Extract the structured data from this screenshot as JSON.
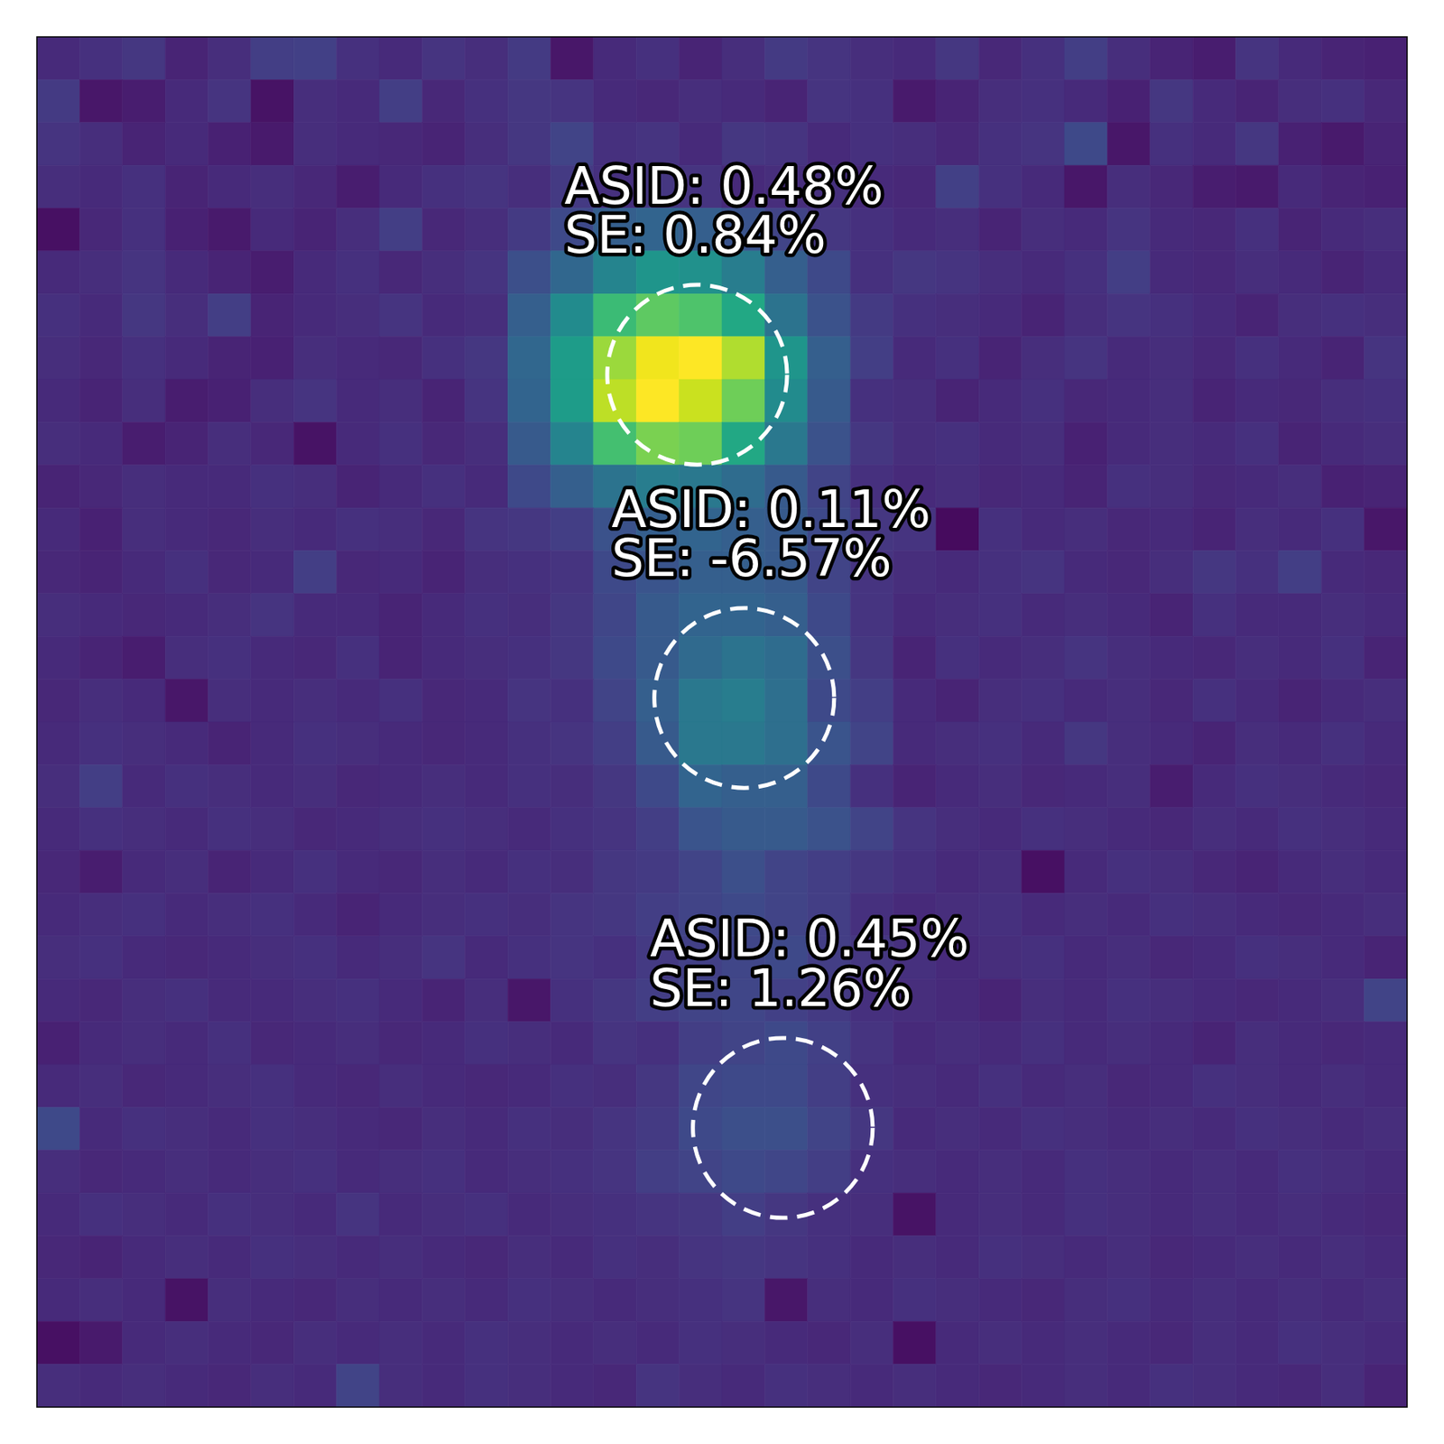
{
  "chart_data": {
    "type": "heatmap",
    "tick_labels": false,
    "xlim": [
      0,
      32
    ],
    "ylim": [
      32,
      0
    ],
    "zlim": [
      0,
      1
    ],
    "z": [
      [
        0.12,
        0.14,
        0.16,
        0.1,
        0.13,
        0.18,
        0.19,
        0.14,
        0.12,
        0.15,
        0.13,
        0.17,
        0.06,
        0.12,
        0.14,
        0.1,
        0.13,
        0.17,
        0.15,
        0.13,
        0.12,
        0.16,
        0.11,
        0.14,
        0.18,
        0.13,
        0.1,
        0.08,
        0.15,
        0.12,
        0.1,
        0.09
      ],
      [
        0.17,
        0.06,
        0.08,
        0.12,
        0.15,
        0.05,
        0.13,
        0.12,
        0.18,
        0.11,
        0.14,
        0.16,
        0.15,
        0.12,
        0.11,
        0.13,
        0.12,
        0.1,
        0.15,
        0.14,
        0.07,
        0.1,
        0.13,
        0.14,
        0.12,
        0.09,
        0.16,
        0.12,
        0.1,
        0.13,
        0.14,
        0.11
      ],
      [
        0.15,
        0.13,
        0.1,
        0.12,
        0.09,
        0.07,
        0.13,
        0.12,
        0.11,
        0.1,
        0.13,
        0.16,
        0.2,
        0.14,
        0.15,
        0.12,
        0.16,
        0.15,
        0.12,
        0.14,
        0.13,
        0.11,
        0.14,
        0.15,
        0.22,
        0.06,
        0.14,
        0.12,
        0.16,
        0.09,
        0.07,
        0.1
      ],
      [
        0.13,
        0.12,
        0.14,
        0.1,
        0.12,
        0.13,
        0.11,
        0.08,
        0.12,
        0.14,
        0.15,
        0.13,
        0.17,
        0.14,
        0.16,
        0.15,
        0.12,
        0.13,
        0.14,
        0.12,
        0.11,
        0.19,
        0.14,
        0.12,
        0.06,
        0.13,
        0.11,
        0.08,
        0.07,
        0.12,
        0.1,
        0.09
      ],
      [
        0.04,
        0.11,
        0.14,
        0.09,
        0.07,
        0.12,
        0.1,
        0.13,
        0.18,
        0.11,
        0.13,
        0.17,
        0.22,
        0.3,
        0.32,
        0.3,
        0.26,
        0.2,
        0.16,
        0.14,
        0.12,
        0.13,
        0.1,
        0.13,
        0.12,
        0.15,
        0.12,
        0.11,
        0.14,
        0.1,
        0.12,
        0.13
      ],
      [
        0.12,
        0.13,
        0.15,
        0.12,
        0.1,
        0.08,
        0.12,
        0.14,
        0.11,
        0.13,
        0.15,
        0.24,
        0.33,
        0.45,
        0.52,
        0.5,
        0.42,
        0.3,
        0.22,
        0.14,
        0.16,
        0.15,
        0.13,
        0.12,
        0.14,
        0.18,
        0.12,
        0.11,
        0.13,
        0.12,
        0.1,
        0.12
      ],
      [
        0.14,
        0.12,
        0.16,
        0.13,
        0.18,
        0.1,
        0.12,
        0.13,
        0.15,
        0.12,
        0.13,
        0.3,
        0.48,
        0.68,
        0.75,
        0.72,
        0.6,
        0.38,
        0.25,
        0.17,
        0.14,
        0.13,
        0.12,
        0.1,
        0.13,
        0.15,
        0.14,
        0.12,
        0.1,
        0.13,
        0.14,
        0.13
      ],
      [
        0.13,
        0.11,
        0.14,
        0.12,
        0.1,
        0.09,
        0.13,
        0.12,
        0.11,
        0.14,
        0.16,
        0.33,
        0.55,
        0.85,
        0.98,
        1.0,
        0.88,
        0.52,
        0.3,
        0.18,
        0.12,
        0.14,
        0.1,
        0.13,
        0.15,
        0.12,
        0.13,
        0.11,
        0.14,
        0.12,
        0.1,
        0.15
      ],
      [
        0.12,
        0.1,
        0.13,
        0.08,
        0.09,
        0.13,
        0.15,
        0.12,
        0.13,
        0.1,
        0.15,
        0.32,
        0.55,
        0.9,
        1.0,
        0.92,
        0.78,
        0.48,
        0.28,
        0.14,
        0.13,
        0.1,
        0.12,
        0.14,
        0.11,
        0.12,
        0.13,
        0.1,
        0.12,
        0.11,
        0.13,
        0.14
      ],
      [
        0.13,
        0.12,
        0.08,
        0.1,
        0.13,
        0.11,
        0.05,
        0.12,
        0.14,
        0.11,
        0.13,
        0.28,
        0.45,
        0.7,
        0.8,
        0.78,
        0.6,
        0.4,
        0.25,
        0.16,
        0.13,
        0.14,
        0.12,
        0.13,
        0.09,
        0.12,
        0.13,
        0.12,
        0.14,
        0.1,
        0.12,
        0.13
      ],
      [
        0.1,
        0.11,
        0.13,
        0.12,
        0.12,
        0.14,
        0.13,
        0.1,
        0.12,
        0.14,
        0.12,
        0.22,
        0.3,
        0.38,
        0.42,
        0.4,
        0.35,
        0.28,
        0.2,
        0.14,
        0.12,
        0.13,
        0.11,
        0.12,
        0.1,
        0.14,
        0.13,
        0.11,
        0.12,
        0.13,
        0.09,
        0.1
      ],
      [
        0.12,
        0.09,
        0.13,
        0.12,
        0.11,
        0.13,
        0.12,
        0.14,
        0.13,
        0.11,
        0.15,
        0.16,
        0.18,
        0.25,
        0.3,
        0.32,
        0.3,
        0.28,
        0.22,
        0.16,
        0.15,
        0.03,
        0.14,
        0.12,
        0.13,
        0.11,
        0.12,
        0.1,
        0.13,
        0.12,
        0.14,
        0.06
      ],
      [
        0.11,
        0.1,
        0.12,
        0.14,
        0.11,
        0.12,
        0.18,
        0.11,
        0.12,
        0.1,
        0.13,
        0.14,
        0.15,
        0.22,
        0.26,
        0.3,
        0.3,
        0.28,
        0.2,
        0.15,
        0.13,
        0.12,
        0.14,
        0.15,
        0.12,
        0.11,
        0.13,
        0.16,
        0.14,
        0.18,
        0.12,
        0.11
      ],
      [
        0.13,
        0.12,
        0.11,
        0.12,
        0.13,
        0.15,
        0.12,
        0.12,
        0.1,
        0.12,
        0.14,
        0.13,
        0.16,
        0.21,
        0.28,
        0.32,
        0.32,
        0.3,
        0.22,
        0.15,
        0.12,
        0.13,
        0.14,
        0.12,
        0.13,
        0.12,
        0.1,
        0.14,
        0.12,
        0.12,
        0.13,
        0.12
      ],
      [
        0.12,
        0.1,
        0.08,
        0.13,
        0.14,
        0.12,
        0.11,
        0.14,
        0.1,
        0.12,
        0.13,
        0.14,
        0.16,
        0.22,
        0.28,
        0.34,
        0.38,
        0.35,
        0.24,
        0.16,
        0.1,
        0.14,
        0.12,
        0.13,
        0.15,
        0.13,
        0.12,
        0.11,
        0.13,
        0.12,
        0.14,
        0.1
      ],
      [
        0.11,
        0.13,
        0.12,
        0.06,
        0.13,
        0.12,
        0.13,
        0.12,
        0.14,
        0.11,
        0.12,
        0.15,
        0.14,
        0.2,
        0.3,
        0.4,
        0.42,
        0.36,
        0.22,
        0.18,
        0.12,
        0.1,
        0.13,
        0.14,
        0.12,
        0.13,
        0.11,
        0.14,
        0.12,
        0.1,
        0.12,
        0.13
      ],
      [
        0.12,
        0.14,
        0.13,
        0.12,
        0.1,
        0.12,
        0.14,
        0.13,
        0.12,
        0.11,
        0.12,
        0.14,
        0.15,
        0.18,
        0.28,
        0.4,
        0.4,
        0.36,
        0.26,
        0.2,
        0.12,
        0.13,
        0.14,
        0.12,
        0.16,
        0.13,
        0.12,
        0.1,
        0.13,
        0.12,
        0.14,
        0.12
      ],
      [
        0.13,
        0.18,
        0.12,
        0.14,
        0.13,
        0.12,
        0.13,
        0.11,
        0.12,
        0.13,
        0.12,
        0.14,
        0.13,
        0.16,
        0.22,
        0.32,
        0.3,
        0.3,
        0.22,
        0.14,
        0.1,
        0.12,
        0.13,
        0.11,
        0.12,
        0.13,
        0.08,
        0.12,
        0.14,
        0.13,
        0.12,
        0.11
      ],
      [
        0.12,
        0.14,
        0.13,
        0.12,
        0.14,
        0.13,
        0.11,
        0.12,
        0.13,
        0.14,
        0.13,
        0.12,
        0.14,
        0.15,
        0.18,
        0.26,
        0.28,
        0.28,
        0.25,
        0.2,
        0.15,
        0.13,
        0.12,
        0.14,
        0.13,
        0.12,
        0.11,
        0.13,
        0.12,
        0.14,
        0.13,
        0.12
      ],
      [
        0.11,
        0.08,
        0.12,
        0.13,
        0.1,
        0.12,
        0.14,
        0.12,
        0.11,
        0.13,
        0.12,
        0.14,
        0.13,
        0.16,
        0.17,
        0.2,
        0.24,
        0.2,
        0.18,
        0.16,
        0.14,
        0.12,
        0.13,
        0.04,
        0.12,
        0.14,
        0.13,
        0.11,
        0.1,
        0.12,
        0.13,
        0.12
      ],
      [
        0.12,
        0.13,
        0.14,
        0.12,
        0.13,
        0.14,
        0.12,
        0.1,
        0.12,
        0.13,
        0.14,
        0.13,
        0.15,
        0.16,
        0.18,
        0.2,
        0.22,
        0.2,
        0.18,
        0.14,
        0.12,
        0.13,
        0.14,
        0.12,
        0.13,
        0.12,
        0.14,
        0.13,
        0.12,
        0.11,
        0.12,
        0.13
      ],
      [
        0.13,
        0.14,
        0.12,
        0.11,
        0.12,
        0.13,
        0.14,
        0.12,
        0.13,
        0.15,
        0.12,
        0.14,
        0.15,
        0.14,
        0.17,
        0.19,
        0.21,
        0.22,
        0.18,
        0.16,
        0.14,
        0.12,
        0.13,
        0.14,
        0.12,
        0.13,
        0.11,
        0.12,
        0.14,
        0.13,
        0.12,
        0.1
      ],
      [
        0.12,
        0.11,
        0.13,
        0.14,
        0.12,
        0.12,
        0.13,
        0.14,
        0.12,
        0.1,
        0.13,
        0.06,
        0.14,
        0.16,
        0.18,
        0.2,
        0.21,
        0.19,
        0.17,
        0.14,
        0.13,
        0.12,
        0.1,
        0.13,
        0.12,
        0.14,
        0.13,
        0.12,
        0.11,
        0.12,
        0.13,
        0.2
      ],
      [
        0.09,
        0.12,
        0.13,
        0.12,
        0.14,
        0.11,
        0.12,
        0.13,
        0.11,
        0.12,
        0.14,
        0.13,
        0.12,
        0.15,
        0.14,
        0.18,
        0.2,
        0.22,
        0.19,
        0.15,
        0.12,
        0.13,
        0.12,
        0.14,
        0.12,
        0.13,
        0.12,
        0.1,
        0.13,
        0.12,
        0.11,
        0.12
      ],
      [
        0.12,
        0.13,
        0.11,
        0.12,
        0.13,
        0.14,
        0.12,
        0.11,
        0.13,
        0.12,
        0.11,
        0.12,
        0.14,
        0.13,
        0.16,
        0.21,
        0.22,
        0.22,
        0.18,
        0.14,
        0.13,
        0.12,
        0.14,
        0.12,
        0.13,
        0.11,
        0.12,
        0.14,
        0.13,
        0.12,
        0.13,
        0.12
      ],
      [
        0.22,
        0.12,
        0.14,
        0.13,
        0.12,
        0.14,
        0.13,
        0.12,
        0.11,
        0.13,
        0.12,
        0.14,
        0.13,
        0.15,
        0.17,
        0.22,
        0.24,
        0.24,
        0.2,
        0.16,
        0.12,
        0.13,
        0.12,
        0.14,
        0.13,
        0.12,
        0.13,
        0.12,
        0.14,
        0.13,
        0.12,
        0.13
      ],
      [
        0.13,
        0.11,
        0.12,
        0.13,
        0.12,
        0.13,
        0.14,
        0.12,
        0.13,
        0.14,
        0.12,
        0.13,
        0.14,
        0.15,
        0.18,
        0.2,
        0.22,
        0.21,
        0.18,
        0.14,
        0.13,
        0.12,
        0.13,
        0.12,
        0.14,
        0.13,
        0.12,
        0.13,
        0.12,
        0.14,
        0.13,
        0.12
      ],
      [
        0.12,
        0.14,
        0.13,
        0.12,
        0.14,
        0.13,
        0.12,
        0.15,
        0.12,
        0.13,
        0.14,
        0.12,
        0.13,
        0.14,
        0.15,
        0.16,
        0.18,
        0.16,
        0.14,
        0.13,
        0.05,
        0.12,
        0.13,
        0.12,
        0.14,
        0.13,
        0.12,
        0.13,
        0.12,
        0.13,
        0.12,
        0.11
      ],
      [
        0.11,
        0.1,
        0.12,
        0.13,
        0.12,
        0.14,
        0.13,
        0.12,
        0.13,
        0.12,
        0.11,
        0.13,
        0.12,
        0.14,
        0.13,
        0.15,
        0.16,
        0.15,
        0.14,
        0.12,
        0.13,
        0.12,
        0.14,
        0.13,
        0.12,
        0.13,
        0.11,
        0.12,
        0.13,
        0.12,
        0.13,
        0.12
      ],
      [
        0.12,
        0.13,
        0.12,
        0.05,
        0.13,
        0.12,
        0.11,
        0.13,
        0.12,
        0.13,
        0.12,
        0.14,
        0.13,
        0.12,
        0.13,
        0.14,
        0.15,
        0.06,
        0.13,
        0.12,
        0.14,
        0.13,
        0.12,
        0.11,
        0.13,
        0.14,
        0.12,
        0.13,
        0.12,
        0.13,
        0.12,
        0.13
      ],
      [
        0.04,
        0.07,
        0.12,
        0.13,
        0.12,
        0.11,
        0.13,
        0.12,
        0.13,
        0.12,
        0.14,
        0.13,
        0.12,
        0.13,
        0.12,
        0.14,
        0.13,
        0.12,
        0.11,
        0.13,
        0.04,
        0.12,
        0.13,
        0.12,
        0.13,
        0.12,
        0.11,
        0.13,
        0.12,
        0.14,
        0.13,
        0.12
      ],
      [
        0.13,
        0.12,
        0.13,
        0.12,
        0.11,
        0.13,
        0.12,
        0.2,
        0.13,
        0.12,
        0.14,
        0.13,
        0.12,
        0.11,
        0.15,
        0.13,
        0.12,
        0.14,
        0.13,
        0.12,
        0.13,
        0.12,
        0.11,
        0.12,
        0.13,
        0.12,
        0.14,
        0.13,
        0.12,
        0.11,
        0.13,
        0.1
      ]
    ],
    "annotations": [
      {
        "x": 15.42,
        "y": 7.89,
        "r": 2.1,
        "lines": [
          "ASID: 0.48%",
          "SE: 0.84%"
        ]
      },
      {
        "x": 16.52,
        "y": 15.44,
        "r": 2.1,
        "lines": [
          "ASID: 0.11%",
          "SE: -6.57%"
        ]
      },
      {
        "x": 17.42,
        "y": 25.48,
        "r": 2.1,
        "lines": [
          "ASID: 0.45%",
          "SE: 1.26%"
        ]
      }
    ]
  }
}
